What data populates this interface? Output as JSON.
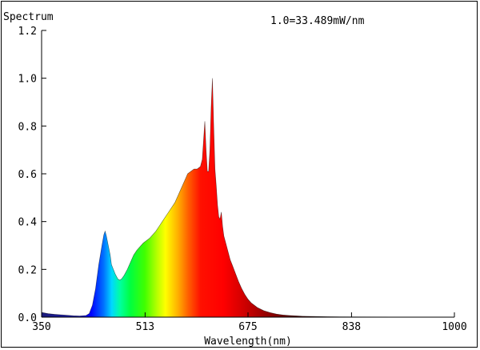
{
  "chart_data": {
    "type": "area",
    "title": "Spectrum",
    "annotation": "1.0=33.489mW/nm",
    "xlabel": "Wavelength(nm)",
    "ylabel": "",
    "xlim": [
      350,
      1000
    ],
    "ylim": [
      0,
      1.2
    ],
    "x_ticks": [
      350,
      513,
      675,
      838,
      1000
    ],
    "x_tick_labels": [
      "350",
      "513",
      "675",
      "838",
      "1000"
    ],
    "y_ticks": [
      0,
      0.2,
      0.4,
      0.6,
      0.8,
      1.0,
      1.2
    ],
    "y_tick_labels": [
      "0.0",
      "0.2",
      "0.4",
      "0.6",
      "0.8",
      "1.0",
      "1.2"
    ],
    "grid": false,
    "series": [
      {
        "x": [
          350,
          360,
          370,
          380,
          390,
          400,
          410,
          420,
          425,
          430,
          435,
          440,
          445,
          448,
          450,
          452,
          455,
          458,
          460,
          463,
          466,
          470,
          473,
          476,
          480,
          485,
          490,
          495,
          500,
          505,
          510,
          515,
          520,
          525,
          530,
          535,
          540,
          545,
          550,
          555,
          560,
          565,
          570,
          575,
          580,
          585,
          590,
          595,
          600,
          603,
          605,
          607,
          609,
          611,
          613,
          615,
          617,
          619,
          621,
          623,
          625,
          627,
          629,
          631,
          633,
          635,
          637,
          639,
          641,
          643,
          645,
          647,
          650,
          655,
          660,
          665,
          670,
          675,
          680,
          690,
          700,
          710,
          720,
          730,
          740,
          760,
          780,
          800,
          820,
          850,
          900,
          950,
          1000
        ],
        "values": [
          0.02,
          0.015,
          0.012,
          0.01,
          0.008,
          0.006,
          0.005,
          0.007,
          0.015,
          0.05,
          0.12,
          0.22,
          0.3,
          0.345,
          0.36,
          0.34,
          0.3,
          0.26,
          0.22,
          0.2,
          0.18,
          0.16,
          0.155,
          0.16,
          0.175,
          0.2,
          0.23,
          0.26,
          0.28,
          0.295,
          0.31,
          0.32,
          0.33,
          0.345,
          0.36,
          0.38,
          0.4,
          0.42,
          0.44,
          0.46,
          0.48,
          0.51,
          0.54,
          0.57,
          0.6,
          0.61,
          0.62,
          0.62,
          0.63,
          0.66,
          0.74,
          0.82,
          0.7,
          0.61,
          0.61,
          0.7,
          0.88,
          1.0,
          0.8,
          0.62,
          0.55,
          0.47,
          0.42,
          0.41,
          0.44,
          0.38,
          0.34,
          0.32,
          0.3,
          0.28,
          0.26,
          0.24,
          0.22,
          0.185,
          0.15,
          0.12,
          0.095,
          0.075,
          0.06,
          0.04,
          0.027,
          0.019,
          0.013,
          0.009,
          0.007,
          0.004,
          0.003,
          0.002,
          0.0015,
          0.001,
          0.0005,
          0.0003,
          0.0
        ]
      }
    ]
  }
}
